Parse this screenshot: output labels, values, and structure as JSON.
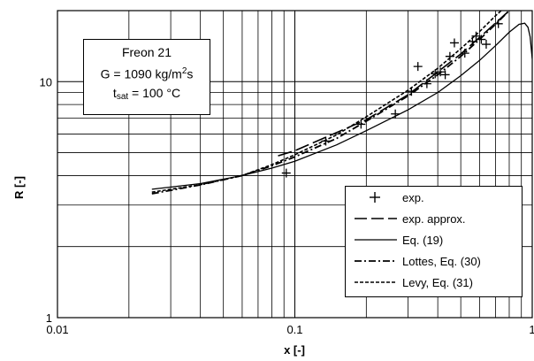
{
  "chart_data": {
    "type": "line",
    "xlabel": "x [-]",
    "ylabel": "R [-]",
    "x_scale": "log",
    "y_scale": "log",
    "xlim": [
      0.01,
      1
    ],
    "ylim": [
      1,
      20
    ],
    "grid": true,
    "legend_position": "bottom-right",
    "x_tick_labels": [
      "0.01",
      "0.1",
      "1"
    ],
    "y_tick_labels": [
      "1",
      "10"
    ],
    "annotation": {
      "fluid": "Freon 21",
      "mass_flux_prefix": "G = 1090 kg/m",
      "mass_flux_sup": "2",
      "mass_flux_suffix": "s",
      "tsat_symbol": "t",
      "tsat_subscript": "sat",
      "tsat_value": " = 100 °C"
    },
    "series": [
      {
        "name": "exp.",
        "style": "markers",
        "marker": "plus",
        "points": [
          [
            0.092,
            4.1
          ],
          [
            0.135,
            5.6
          ],
          [
            0.19,
            6.6
          ],
          [
            0.265,
            7.3
          ],
          [
            0.31,
            9.1
          ],
          [
            0.33,
            11.6
          ],
          [
            0.36,
            9.8
          ],
          [
            0.39,
            10.8
          ],
          [
            0.41,
            11.0
          ],
          [
            0.43,
            10.7
          ],
          [
            0.45,
            12.8
          ],
          [
            0.47,
            14.6
          ],
          [
            0.52,
            13.2
          ],
          [
            0.56,
            14.8
          ],
          [
            0.58,
            15.6
          ],
          [
            0.61,
            15.1
          ],
          [
            0.64,
            14.4
          ],
          [
            0.72,
            17.6
          ]
        ]
      },
      {
        "name": "exp. approx.",
        "style": "long-dash",
        "points": [
          [
            0.085,
            4.85
          ],
          [
            0.1,
            5.1
          ],
          [
            0.2,
            6.9
          ],
          [
            0.3,
            8.8
          ],
          [
            0.4,
            11.0
          ],
          [
            0.5,
            13.1
          ],
          [
            0.6,
            15.4
          ],
          [
            0.7,
            17.7
          ],
          [
            0.8,
            20.0
          ]
        ]
      },
      {
        "name": "Eq. (19)",
        "style": "solid",
        "points": [
          [
            0.025,
            3.5
          ],
          [
            0.04,
            3.7
          ],
          [
            0.06,
            4.0
          ],
          [
            0.08,
            4.3
          ],
          [
            0.1,
            4.6
          ],
          [
            0.15,
            5.4
          ],
          [
            0.2,
            6.2
          ],
          [
            0.3,
            7.6
          ],
          [
            0.4,
            9.0
          ],
          [
            0.5,
            10.6
          ],
          [
            0.6,
            12.3
          ],
          [
            0.7,
            14.2
          ],
          [
            0.8,
            16.2
          ],
          [
            0.88,
            17.5
          ],
          [
            0.93,
            17.7
          ],
          [
            0.96,
            17.0
          ],
          [
            0.98,
            15.5
          ],
          [
            1.0,
            12.5
          ]
        ]
      },
      {
        "name": "Lottes, Eq. (30)",
        "style": "dash-dot",
        "points": [
          [
            0.025,
            3.35
          ],
          [
            0.04,
            3.65
          ],
          [
            0.06,
            4.0
          ],
          [
            0.08,
            4.4
          ],
          [
            0.1,
            4.8
          ],
          [
            0.15,
            5.75
          ],
          [
            0.2,
            6.8
          ],
          [
            0.3,
            8.7
          ],
          [
            0.4,
            10.7
          ],
          [
            0.5,
            12.8
          ],
          [
            0.6,
            15.1
          ],
          [
            0.7,
            17.5
          ],
          [
            0.8,
            20.0
          ]
        ]
      },
      {
        "name": "Levy, Eq. (31)",
        "style": "short-dash",
        "points": [
          [
            0.025,
            3.4
          ],
          [
            0.04,
            3.66
          ],
          [
            0.06,
            4.0
          ],
          [
            0.08,
            4.45
          ],
          [
            0.1,
            4.9
          ],
          [
            0.15,
            5.95
          ],
          [
            0.2,
            7.1
          ],
          [
            0.3,
            9.2
          ],
          [
            0.4,
            11.4
          ],
          [
            0.5,
            13.8
          ],
          [
            0.6,
            16.3
          ],
          [
            0.7,
            19.0
          ],
          [
            0.74,
            20.0
          ]
        ]
      }
    ]
  }
}
